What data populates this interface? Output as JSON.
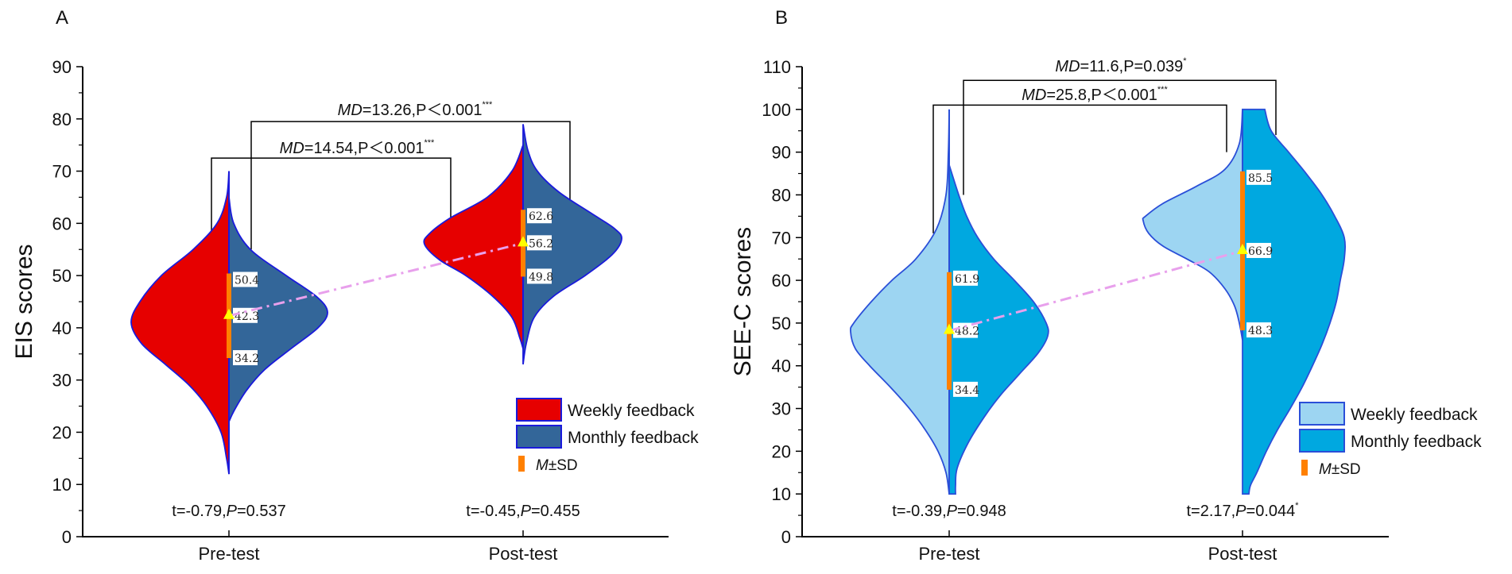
{
  "chart_data": [
    {
      "panel": "A",
      "type": "violin",
      "ylabel": "EIS scores",
      "ylim": [
        0,
        90
      ],
      "yticks": [
        0,
        10,
        20,
        30,
        40,
        50,
        60,
        70,
        80,
        90
      ],
      "categories": [
        "Pre-test",
        "Post-test"
      ],
      "legend": {
        "placement": "bottom-right",
        "items": [
          "Weekly feedback",
          "Monthly feedback"
        ],
        "msd_italic": "M",
        "msd_rest": "±SD"
      },
      "colors": {
        "weekly": "#e60000",
        "monthly": "#336699",
        "outline": "#1a1adb",
        "msd": "#ff8000",
        "mean": "#ffff00",
        "trend": "#e8a0ec"
      },
      "groups": [
        {
          "category": "Pre-test",
          "mean": 42.3,
          "upper": 50.4,
          "lower": 34.2,
          "labels": [
            "50.4",
            "42.3",
            "34.2"
          ],
          "t_text": [
            "t=-0.79,",
            "P",
            "=0.537",
            ""
          ],
          "weekly_range": [
            12,
            70
          ],
          "monthly_range": [
            22,
            65
          ]
        },
        {
          "category": "Post-test",
          "mean": 56.2,
          "upper": 62.6,
          "lower": 49.8,
          "labels": [
            "62.6",
            "56.2",
            "49.8"
          ],
          "t_text": [
            "t=-0.45,",
            "P",
            "=0.455",
            ""
          ],
          "weekly_range": [
            36,
            75
          ],
          "monthly_range": [
            33,
            79
          ]
        }
      ],
      "comparisons": [
        {
          "md_italic": "MD",
          "text": "=13.26,P＜0.001",
          "sig": "***"
        },
        {
          "md_italic": "MD",
          "text": "=14.54,P＜0.001",
          "sig": "***"
        }
      ]
    },
    {
      "panel": "B",
      "type": "violin",
      "ylabel": "SEE-C scores",
      "ylim": [
        0,
        110
      ],
      "yticks": [
        0,
        10,
        20,
        30,
        40,
        50,
        60,
        70,
        80,
        90,
        100,
        110
      ],
      "categories": [
        "Pre-test",
        "Post-test"
      ],
      "legend": {
        "placement": "bottom-right",
        "items": [
          "Weekly feedback",
          "Monthly feedback"
        ],
        "msd_italic": "M",
        "msd_rest": "±SD"
      },
      "colors": {
        "weekly": "#9dd5f2",
        "monthly": "#00a8e0",
        "outline": "#2a4fd8",
        "msd": "#ff8000",
        "mean": "#ffff00",
        "trend": "#e8a0ec"
      },
      "groups": [
        {
          "category": "Pre-test",
          "mean": 48.2,
          "upper": 61.9,
          "lower": 34.4,
          "labels": [
            "61.9",
            "48.2",
            "34.4"
          ],
          "t_text": [
            "t=-0.39,",
            "P",
            "=0.948",
            ""
          ],
          "weekly_range": [
            10,
            100
          ],
          "monthly_range": [
            10,
            87
          ]
        },
        {
          "category": "Post-test",
          "mean": 66.9,
          "upper": 85.5,
          "lower": 48.3,
          "labels": [
            "85.5",
            "66.9",
            "48.3"
          ],
          "t_text": [
            "t=2.17,",
            "P",
            "=0.044",
            "*"
          ],
          "weekly_range": [
            46,
            100
          ],
          "monthly_range": [
            10,
            100
          ]
        }
      ],
      "comparisons": [
        {
          "md_italic": "MD",
          "text": "=11.6,P=0.039",
          "sig": "*"
        },
        {
          "md_italic": "MD",
          "text": "=25.8,P＜0.001",
          "sig": "***"
        }
      ]
    }
  ]
}
